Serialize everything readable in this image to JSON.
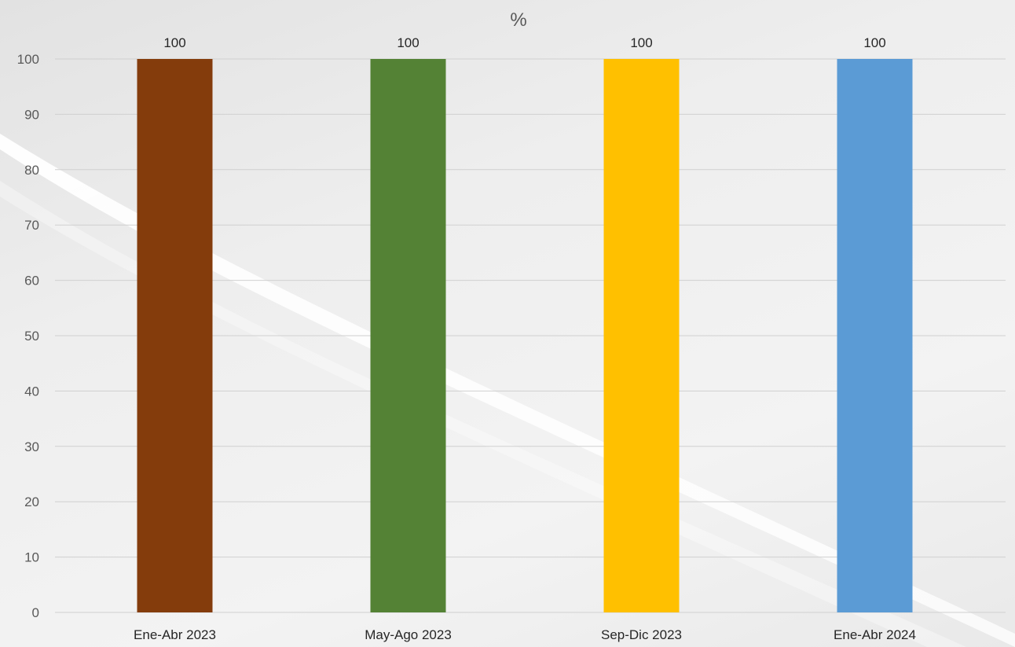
{
  "chart_data": {
    "type": "bar",
    "title": "%",
    "categories": [
      "Ene-Abr 2023",
      "May-Ago 2023",
      "Sep-Dic 2023",
      "Ene-Abr 2024"
    ],
    "values": [
      100,
      100,
      100,
      100
    ],
    "colors": [
      "#843c0c",
      "#548235",
      "#ffc000",
      "#5b9bd5"
    ],
    "data_labels": [
      "100",
      "100",
      "100",
      "100"
    ],
    "ylim": [
      0,
      100
    ],
    "yticks": [
      0,
      10,
      20,
      30,
      40,
      50,
      60,
      70,
      80,
      90,
      100
    ],
    "grid": true,
    "legend": "none",
    "xlabel": "",
    "ylabel": ""
  }
}
